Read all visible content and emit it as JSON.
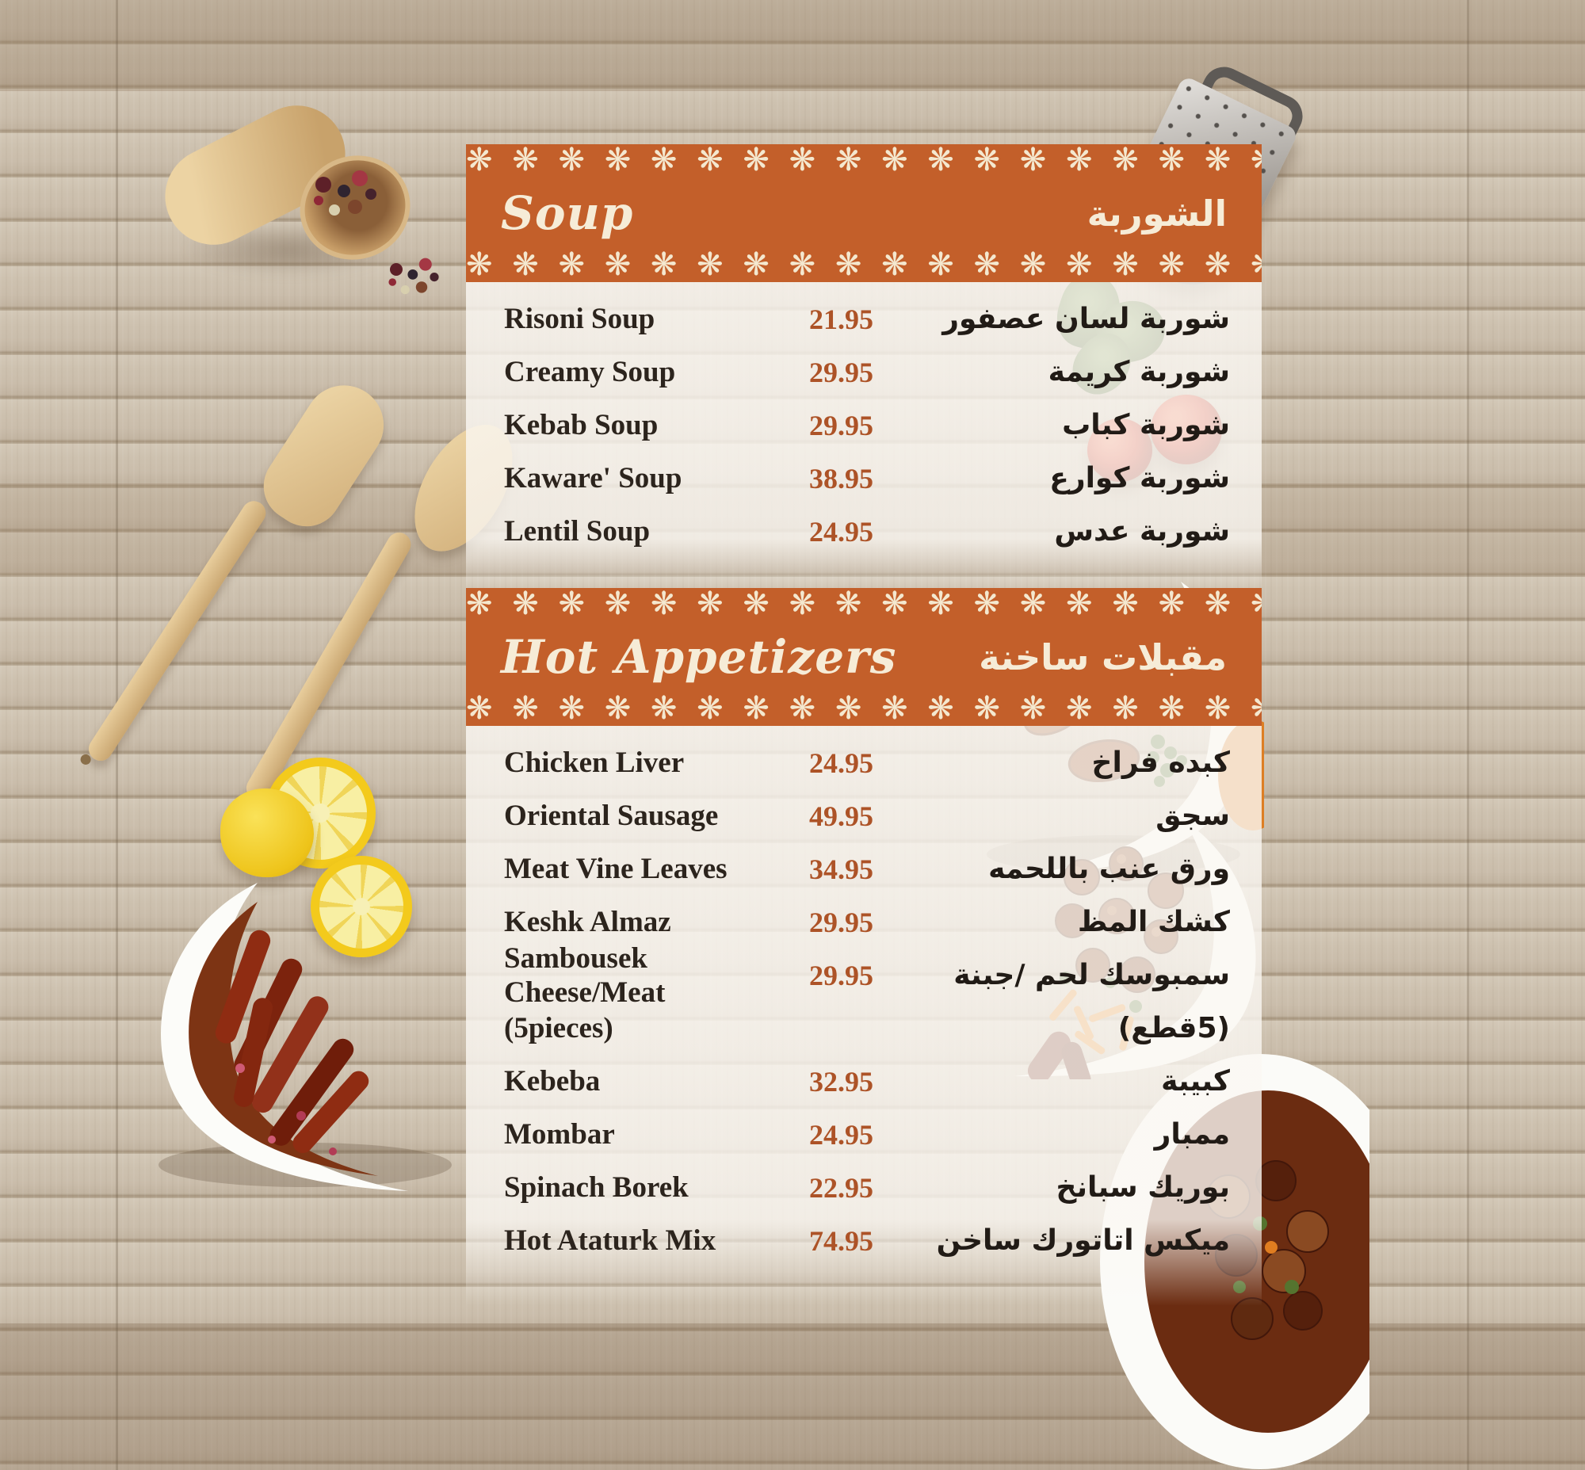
{
  "menu": {
    "sections": [
      {
        "title_en": "Soup",
        "title_ar": "الشوربة",
        "items": [
          {
            "name_en": "Risoni Soup",
            "price": "21.95",
            "name_ar": "شوربة لسان عصفور"
          },
          {
            "name_en": "Creamy Soup",
            "price": "29.95",
            "name_ar": "شوربة كريمة"
          },
          {
            "name_en": "Kebab Soup",
            "price": "29.95",
            "name_ar": "شوربة كباب"
          },
          {
            "name_en": "Kaware' Soup",
            "price": "38.95",
            "name_ar": "شوربة كوارع"
          },
          {
            "name_en": "Lentil Soup",
            "price": "24.95",
            "name_ar": "شوربة عدس"
          }
        ]
      },
      {
        "title_en": "Hot Appetizers",
        "title_ar": "مقبلات ساخنة",
        "items": [
          {
            "name_en": "Chicken Liver",
            "price": "24.95",
            "name_ar": "كبده فراخ"
          },
          {
            "name_en": "Oriental Sausage",
            "price": "49.95",
            "name_ar": "سجق"
          },
          {
            "name_en": "Meat Vine Leaves",
            "price": "34.95",
            "name_ar": "ورق عنب باللحمه"
          },
          {
            "name_en": "Keshk Almaz",
            "price": "29.95",
            "name_ar": "كشك المظ"
          },
          {
            "name_en": "Sambousek Cheese/Meat",
            "price": "29.95",
            "name_ar": "سمبوسك لحم /جبنة"
          },
          {
            "name_en": "(5pieces)",
            "price": "",
            "name_ar": "(5قطع)"
          },
          {
            "name_en": "Kebeba",
            "price": "32.95",
            "name_ar": "كبيبة"
          },
          {
            "name_en": "Mombar",
            "price": "24.95",
            "name_ar": "ممبار"
          },
          {
            "name_en": "Spinach Borek",
            "price": "22.95",
            "name_ar": "بوريك سبانخ"
          },
          {
            "name_en": "Hot Ataturk Mix",
            "price": "74.95",
            "name_ar": "ميكس اتاتورك ساخن"
          }
        ]
      }
    ]
  },
  "ornament": {
    "lace_glyph": "❋"
  },
  "colors": {
    "banner_orange": "#c35f2a",
    "lace_cream": "#f4e8cf",
    "price_text": "#ad5327",
    "item_text": "#2c241d",
    "panel_bg": "rgba(251,248,243,0.8)"
  },
  "decor": {
    "items": [
      "wooden-scoop",
      "cheese-grater",
      "herb-sprig",
      "tomatoes",
      "wooden-spatulas",
      "lemon-slices",
      "sausage-bowl",
      "kibbeh-plate",
      "meatball-plate",
      "stew-bowl"
    ]
  }
}
